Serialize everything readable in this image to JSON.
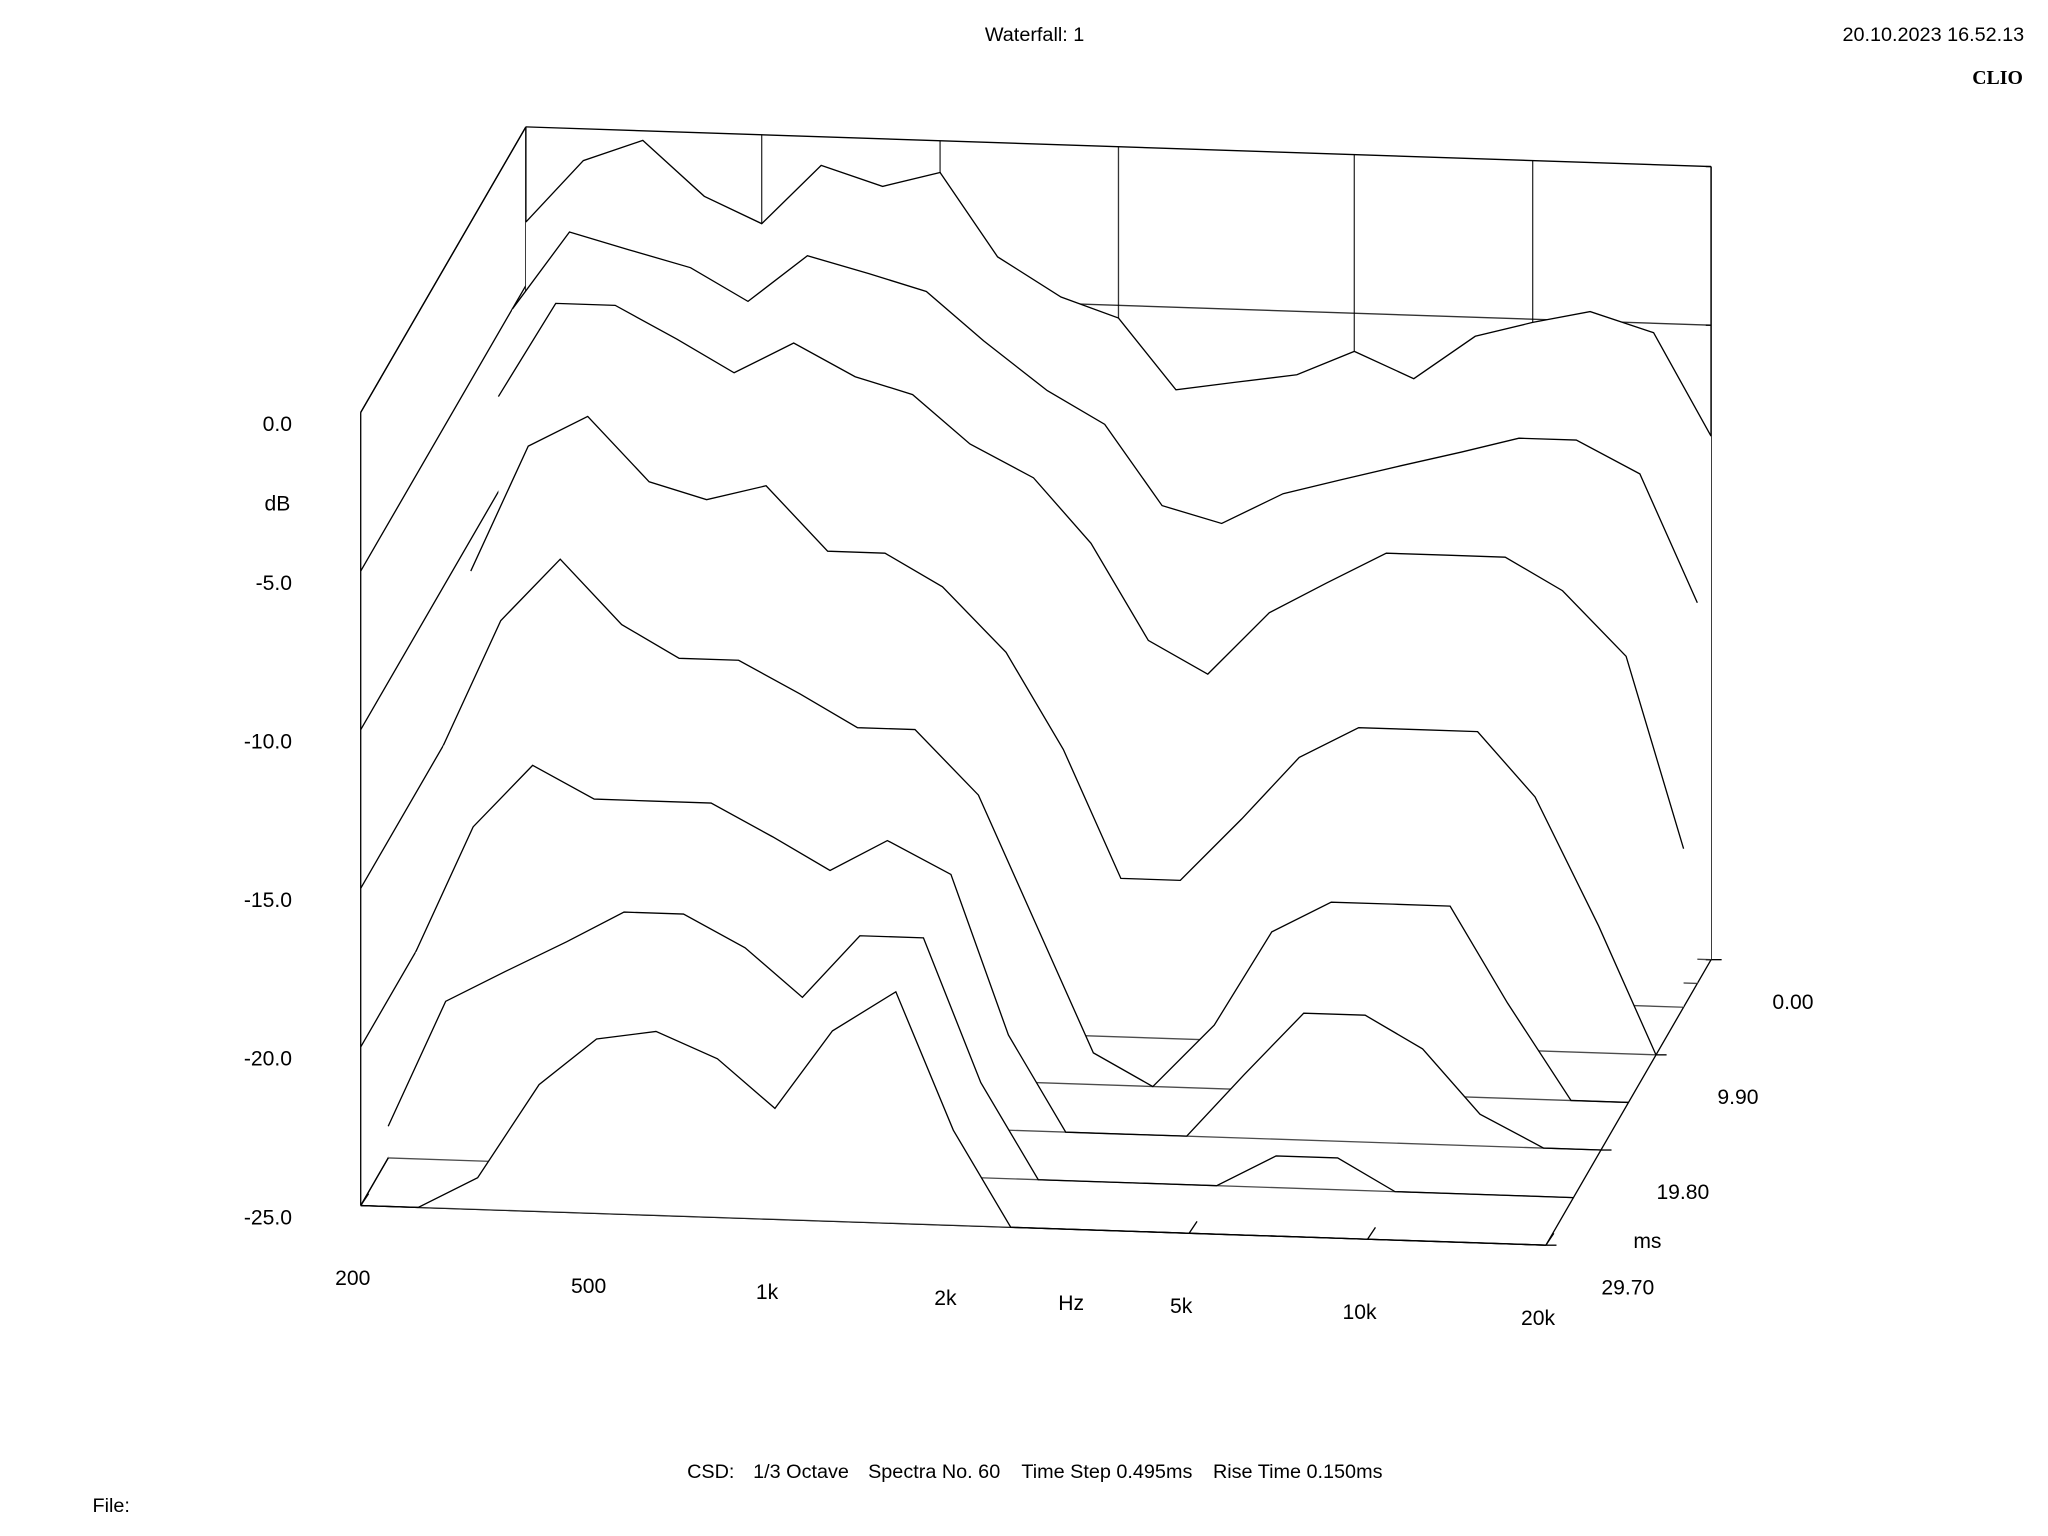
{
  "chart_data": {
    "type": "waterfall",
    "title": "Waterfall: 1",
    "timestamp": "20.10.2023 16.52.13",
    "brand": "CLIO",
    "ylabel": "dB",
    "xlabel": "Hz",
    "zlabel": "ms",
    "x": [
      200,
      250,
      315,
      400,
      500,
      630,
      800,
      1000,
      1250,
      1600,
      2000,
      2500,
      3150,
      4000,
      5000,
      6300,
      8000,
      10000,
      12500,
      16000,
      20000
    ],
    "xlim": [
      200,
      20000
    ],
    "xscale": "log",
    "xticks": [
      200,
      500,
      {
        "value": 1000,
        "label": "1k"
      },
      {
        "value": 2000,
        "label": "2k"
      },
      {
        "value": 5000,
        "label": "5k"
      },
      {
        "value": 10000,
        "label": "10k"
      },
      {
        "value": 20000,
        "label": "20k"
      }
    ],
    "ylim": [
      -25,
      0
    ],
    "yticks": [
      {
        "value": 0,
        "label": "0.0"
      },
      {
        "value": -5,
        "label": "-5.0"
      },
      {
        "value": -10,
        "label": "-10.0"
      },
      {
        "value": -15,
        "label": "-15.0"
      },
      {
        "value": -20,
        "label": "-20.0"
      },
      {
        "value": -25,
        "label": "-25.0"
      }
    ],
    "zlim": [
      0,
      29.7
    ],
    "zticks": [
      {
        "value": 0,
        "label": "0.00"
      },
      {
        "value": 9.9,
        "label": "9.90"
      },
      {
        "value": 19.8,
        "label": "19.80"
      },
      {
        "value": 29.7,
        "label": "29.70"
      }
    ],
    "color": "#000000",
    "series": [
      {
        "time": 0,
        "values": [
          -3,
          -1,
          -0.3,
          -2,
          -2.8,
          -0.9,
          -1.5,
          -1,
          -3.6,
          -4.8,
          -5.4,
          -7.6,
          -7.3,
          -7,
          -6.2,
          -7,
          -5.6,
          -5.1,
          -4.7,
          -5.3,
          -8.5
        ]
      },
      {
        "time": 2.475,
        "values": [
          -5,
          -2.5,
          -3,
          -3.5,
          -4.5,
          -3,
          -3.5,
          -4,
          -5.5,
          -7,
          -8,
          -10.5,
          -11,
          -10,
          -9.5,
          -9,
          -8.5,
          -8,
          -8,
          -9,
          -13
        ]
      },
      {
        "time": 4.95,
        "values": [
          -7,
          -4,
          -4,
          -5,
          -6,
          -5,
          -6,
          -6.5,
          -8,
          -9,
          -11,
          -14,
          -15,
          -13,
          -12,
          -11,
          -11,
          -11,
          -12,
          -14,
          -20
        ]
      },
      {
        "time": 9.9,
        "values": [
          -11,
          -7,
          -6,
          -8,
          -8.5,
          -8,
          -10,
          -10,
          -11,
          -13,
          -16,
          -20,
          -20,
          -18,
          -16,
          -15,
          -15,
          -15,
          -17,
          -21,
          -25
        ]
      },
      {
        "time": 14.85,
        "values": [
          -15,
          -11,
          -9,
          -11,
          -12,
          -12,
          -13,
          -14,
          -14,
          -16,
          -20,
          -24,
          -25,
          -23,
          -20,
          -19,
          -19,
          -19,
          -22,
          -25,
          -25
        ]
      },
      {
        "time": 19.8,
        "values": [
          -20,
          -16,
          -14,
          -15,
          -15,
          -15,
          -16,
          -17,
          -16,
          -17,
          -22,
          -25,
          -25,
          -25,
          -23,
          -21,
          -21,
          -22,
          -24,
          -25,
          -25
        ]
      },
      {
        "time": 24.75,
        "values": [
          -24,
          -20,
          -19,
          -18,
          -17,
          -17,
          -18,
          -19.5,
          -17.5,
          -17.5,
          -22,
          -25,
          -25,
          -25,
          -25,
          -24,
          -24,
          -25,
          -25,
          -25,
          -25
        ]
      },
      {
        "time": 29.7,
        "values": [
          -25,
          -25,
          -24,
          -21,
          -19.5,
          -19.2,
          -20,
          -21.5,
          -19,
          -17.7,
          -22,
          -25,
          -25,
          -25,
          -25,
          -25,
          -25,
          -25,
          -25,
          -25,
          -25
        ]
      }
    ]
  },
  "footer": [
    "CSD:",
    "1/3 Octave",
    "Spectra No. 60",
    "Time Step 0.495ms",
    "Rise Time 0.150ms"
  ],
  "file_label": "File:"
}
